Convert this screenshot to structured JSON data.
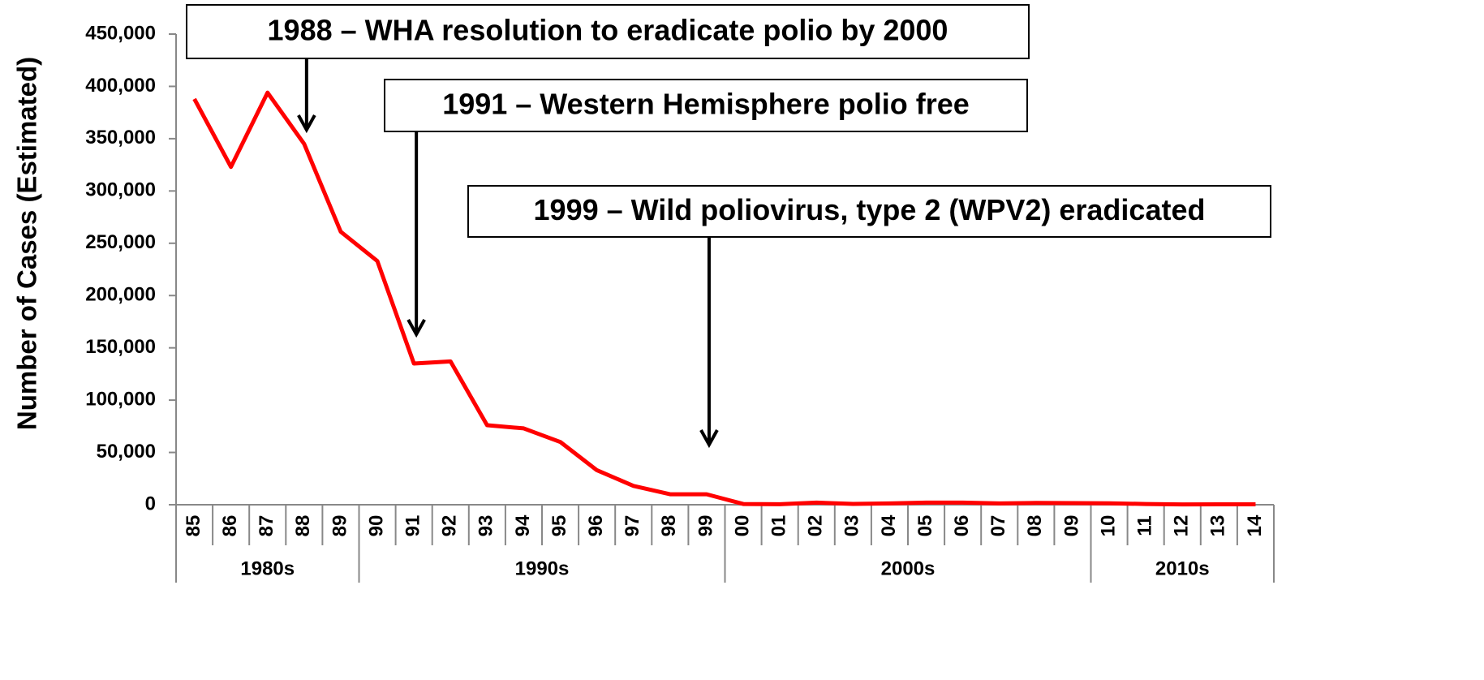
{
  "chart_data": {
    "type": "line",
    "y_label": "Number of Cases (Estimated)",
    "categories": [
      "85",
      "86",
      "87",
      "88",
      "89",
      "90",
      "91",
      "92",
      "93",
      "94",
      "95",
      "96",
      "97",
      "98",
      "99",
      "00",
      "01",
      "02",
      "03",
      "04",
      "05",
      "06",
      "07",
      "08",
      "09",
      "10",
      "11",
      "12",
      "13",
      "14"
    ],
    "category_groups": [
      {
        "label": "1980s",
        "span": 5
      },
      {
        "label": "1990s",
        "span": 10
      },
      {
        "label": "2000s",
        "span": 10
      },
      {
        "label": "2010s",
        "span": 5
      }
    ],
    "series": [
      {
        "name": "Cases",
        "color": "#ff0000",
        "values": [
          388000,
          323000,
          394000,
          345000,
          261000,
          233000,
          135000,
          137000,
          76000,
          73000,
          60000,
          33000,
          18000,
          10000,
          10000,
          700,
          500,
          2000,
          800,
          1300,
          2000,
          2000,
          1300,
          1700,
          1600,
          1400,
          700,
          300,
          400,
          400
        ]
      }
    ],
    "ylim": [
      0,
      450000
    ],
    "yticks": [
      0,
      {
        "value": 50000,
        "label": "50,000"
      },
      {
        "value": 100000,
        "label": "100,000"
      },
      {
        "value": 150000,
        "label": "150,000"
      },
      {
        "value": 200000,
        "label": "200,000"
      },
      {
        "value": 250000,
        "label": "250,000"
      },
      {
        "value": 300000,
        "label": "300,000"
      },
      {
        "value": 350000,
        "label": "350,000"
      },
      {
        "value": 400000,
        "label": "400,000"
      },
      {
        "value": 450000,
        "label": "450,000"
      }
    ],
    "annotations": [
      {
        "text": "1988 – WHA resolution to eradicate polio by 2000",
        "category": "88"
      },
      {
        "text": "1991 – Western Hemisphere polio free",
        "category": "91"
      },
      {
        "text": "1999 – Wild poliovirus, type 2 (WPV2) eradicated",
        "category": "99"
      }
    ]
  }
}
